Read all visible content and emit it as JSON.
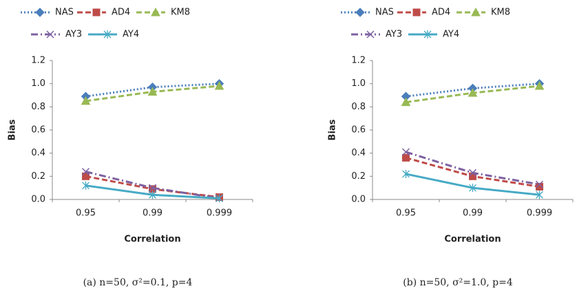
{
  "chart_data": [
    {
      "type": "line",
      "caption": "(a) n=50, σ²=0.1, p=4",
      "x_label": "Correlation",
      "y_label": "Bias",
      "categories": [
        "0.95",
        "0.99",
        "0.999"
      ],
      "ylim": [
        0,
        1.2
      ],
      "yticks": [
        {
          "value": 0,
          "label": "0.0"
        },
        0.2,
        0.4,
        0.6,
        0.8,
        {
          "value": 1,
          "label": "1.0"
        },
        1.2
      ],
      "series": [
        {
          "name": "NAS",
          "color": "#4a7ebb",
          "dash": "dotted",
          "marker": "diamond",
          "values": [
            0.89,
            0.97,
            1.0
          ]
        },
        {
          "name": "AD4",
          "color": "#be4b48",
          "dash": "dashed",
          "marker": "square",
          "values": [
            0.2,
            0.09,
            0.02
          ]
        },
        {
          "name": "KM8",
          "color": "#98b954",
          "dash": "dashed",
          "marker": "triangle",
          "values": [
            0.85,
            0.93,
            0.98
          ]
        },
        {
          "name": "AY3",
          "color": "#7d60a0",
          "dash": "dashdot",
          "marker": "x",
          "values": [
            0.24,
            0.1,
            0.01
          ]
        },
        {
          "name": "AY4",
          "color": "#46aac5",
          "dash": "solid",
          "marker": "asterisk",
          "values": [
            0.12,
            0.04,
            0.01
          ]
        }
      ]
    },
    {
      "type": "line",
      "caption": "(b) n=50, σ²=1.0, p=4",
      "x_label": "Correlation",
      "y_label": "Bias",
      "categories": [
        "0.95",
        "0.99",
        "0.999"
      ],
      "ylim": [
        0,
        1.2
      ],
      "yticks": [
        {
          "value": 0,
          "label": "0.0"
        },
        0.2,
        0.4,
        0.6,
        0.8,
        {
          "value": 1,
          "label": "1.0"
        },
        1.2
      ],
      "series": [
        {
          "name": "NAS",
          "color": "#4a7ebb",
          "dash": "dotted",
          "marker": "diamond",
          "values": [
            0.89,
            0.96,
            1.0
          ]
        },
        {
          "name": "AD4",
          "color": "#be4b48",
          "dash": "dashed",
          "marker": "square",
          "values": [
            0.36,
            0.2,
            0.11
          ]
        },
        {
          "name": "KM8",
          "color": "#98b954",
          "dash": "dashed",
          "marker": "triangle",
          "values": [
            0.84,
            0.92,
            0.98
          ]
        },
        {
          "name": "AY3",
          "color": "#7d60a0",
          "dash": "dashdot",
          "marker": "x",
          "values": [
            0.41,
            0.23,
            0.13
          ]
        },
        {
          "name": "AY4",
          "color": "#46aac5",
          "dash": "solid",
          "marker": "asterisk",
          "values": [
            0.22,
            0.1,
            0.04
          ]
        }
      ]
    }
  ]
}
